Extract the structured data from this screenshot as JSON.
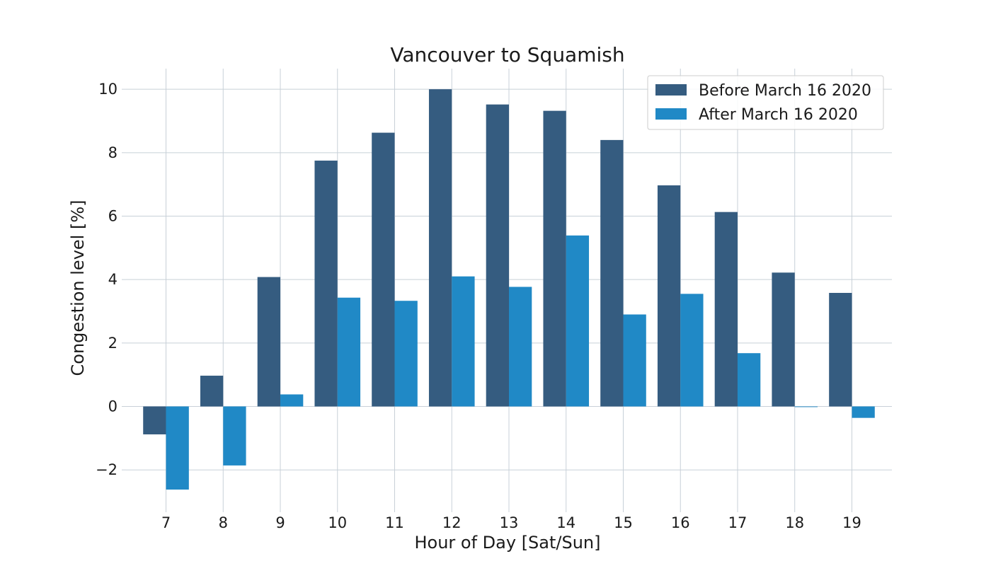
{
  "chart_data": {
    "type": "bar",
    "title": "Vancouver to Squamish",
    "xlabel": "Hour of Day [Sat/Sun]",
    "ylabel": "Congestion level [%]",
    "categories": [
      "7",
      "8",
      "9",
      "10",
      "11",
      "12",
      "13",
      "14",
      "15",
      "16",
      "17",
      "18",
      "19"
    ],
    "series": [
      {
        "name": "Before March 16 2020",
        "color": "#355c80",
        "values": [
          -0.88,
          0.97,
          4.08,
          7.75,
          8.63,
          10.0,
          9.52,
          9.32,
          8.4,
          6.97,
          6.13,
          4.22,
          3.58
        ]
      },
      {
        "name": "After March 16 2020",
        "color": "#2089c6",
        "values": [
          -2.62,
          -1.86,
          0.38,
          3.43,
          3.33,
          4.1,
          3.77,
          5.39,
          2.9,
          3.55,
          1.68,
          -0.02,
          -0.36
        ]
      }
    ],
    "ylim": [
      -3.2,
      10.65
    ],
    "yticks": [
      -2,
      0,
      2,
      4,
      6,
      8,
      10
    ],
    "ytick_labels": [
      "−2",
      "0",
      "2",
      "4",
      "6",
      "8",
      "10"
    ],
    "grid": true,
    "legend_position": "top-right",
    "grid_color": "#c8d0d8"
  }
}
